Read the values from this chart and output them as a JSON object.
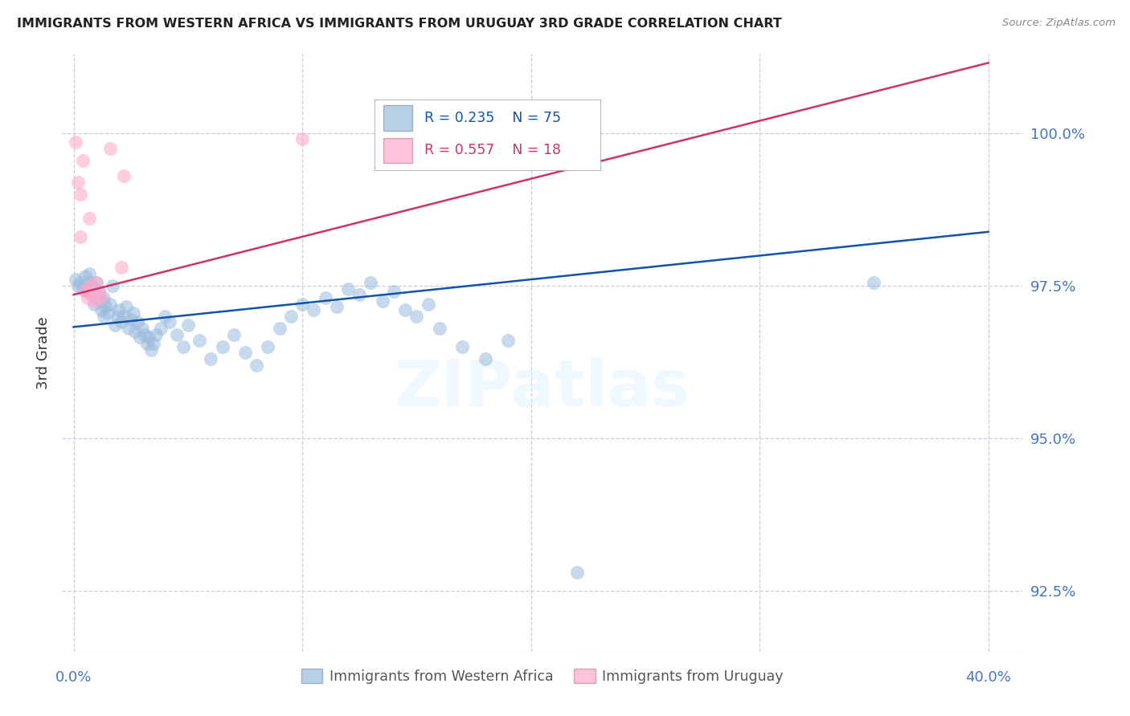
{
  "title": "IMMIGRANTS FROM WESTERN AFRICA VS IMMIGRANTS FROM URUGUAY 3RD GRADE CORRELATION CHART",
  "source": "Source: ZipAtlas.com",
  "ylabel": "3rd Grade",
  "ylim": [
    91.5,
    101.3
  ],
  "xlim": [
    -0.005,
    0.415
  ],
  "yticks": [
    92.5,
    95.0,
    97.5,
    100.0
  ],
  "ytick_labels": [
    "92.5%",
    "95.0%",
    "97.5%",
    "100.0%"
  ],
  "legend_blue_r": "R = 0.235",
  "legend_blue_n": "N = 75",
  "legend_pink_r": "R = 0.557",
  "legend_pink_n": "N = 18",
  "blue_scatter_color": "#99BBDD",
  "pink_scatter_color": "#FFAACC",
  "blue_line_color": "#1155AA",
  "pink_line_color": "#CC3366",
  "axis_color": "#4477BB",
  "grid_color": "#CCCCDD",
  "background": "#FFFFFF",
  "watermark": "ZIPatlas",
  "bottom_legend_blue": "Immigrants from Western Africa",
  "bottom_legend_pink": "Immigrants from Uruguay",
  "blue_line_x": [
    0.0,
    0.4
  ],
  "blue_line_y": [
    96.82,
    98.38
  ],
  "pink_line_x": [
    0.0,
    0.4
  ],
  "pink_line_y": [
    97.35,
    101.15
  ],
  "blue_x": [
    0.001,
    0.002,
    0.003,
    0.004,
    0.005,
    0.006,
    0.007,
    0.007,
    0.008,
    0.008,
    0.009,
    0.009,
    0.01,
    0.01,
    0.011,
    0.012,
    0.012,
    0.013,
    0.013,
    0.014,
    0.015,
    0.016,
    0.017,
    0.018,
    0.019,
    0.02,
    0.021,
    0.022,
    0.023,
    0.024,
    0.025,
    0.026,
    0.027,
    0.028,
    0.029,
    0.03,
    0.031,
    0.032,
    0.033,
    0.034,
    0.035,
    0.036,
    0.038,
    0.04,
    0.042,
    0.045,
    0.048,
    0.05,
    0.055,
    0.06,
    0.065,
    0.07,
    0.075,
    0.08,
    0.085,
    0.09,
    0.095,
    0.1,
    0.105,
    0.11,
    0.115,
    0.12,
    0.125,
    0.13,
    0.135,
    0.14,
    0.145,
    0.15,
    0.155,
    0.16,
    0.17,
    0.18,
    0.19,
    0.22,
    0.35
  ],
  "blue_y": [
    97.6,
    97.5,
    97.55,
    97.45,
    97.65,
    97.4,
    97.7,
    97.55,
    97.5,
    97.35,
    97.45,
    97.2,
    97.55,
    97.3,
    97.4,
    97.25,
    97.1,
    97.3,
    97.0,
    97.15,
    97.05,
    97.2,
    97.5,
    96.85,
    97.0,
    97.1,
    96.9,
    97.0,
    97.15,
    96.8,
    96.95,
    97.05,
    96.75,
    96.9,
    96.65,
    96.8,
    96.7,
    96.55,
    96.65,
    96.45,
    96.55,
    96.7,
    96.8,
    97.0,
    96.9,
    96.7,
    96.5,
    96.85,
    96.6,
    96.3,
    96.5,
    96.7,
    96.4,
    96.2,
    96.5,
    96.8,
    97.0,
    97.2,
    97.1,
    97.3,
    97.15,
    97.45,
    97.35,
    97.55,
    97.25,
    97.4,
    97.1,
    97.0,
    97.2,
    96.8,
    96.5,
    96.3,
    96.6,
    92.8,
    97.55
  ],
  "pink_x": [
    0.001,
    0.002,
    0.003,
    0.003,
    0.004,
    0.005,
    0.006,
    0.007,
    0.007,
    0.008,
    0.009,
    0.01,
    0.011,
    0.012,
    0.016,
    0.021,
    0.022,
    0.1
  ],
  "pink_y": [
    99.85,
    99.2,
    99.0,
    98.3,
    99.55,
    97.4,
    97.3,
    98.6,
    97.5,
    97.35,
    97.25,
    97.55,
    97.4,
    97.3,
    99.75,
    97.8,
    99.3,
    99.9
  ]
}
